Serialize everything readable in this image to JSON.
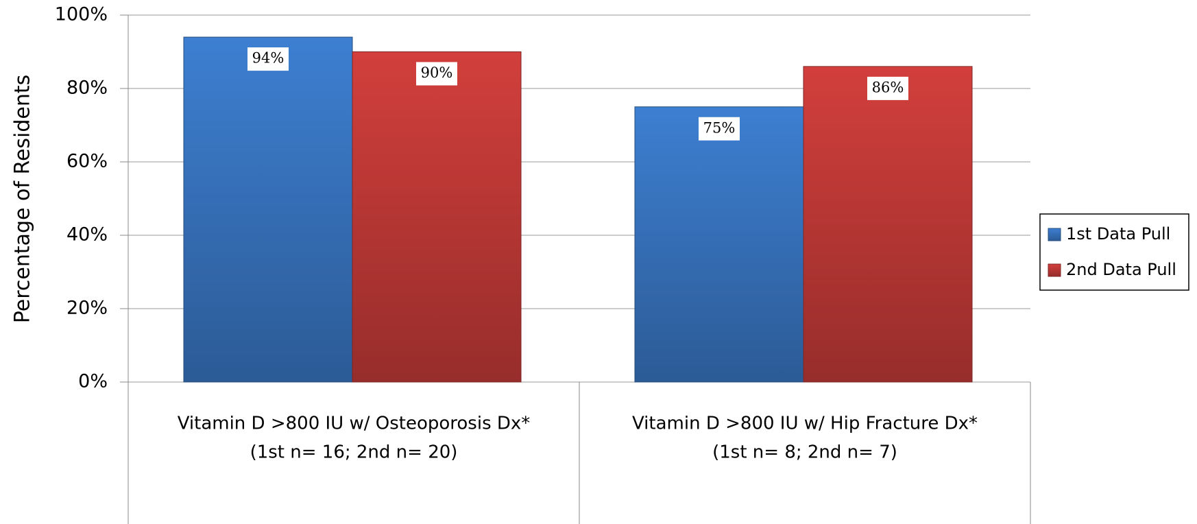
{
  "chart_data": {
    "type": "bar",
    "y_label": "Percentage of Residents",
    "categories": [
      [
        "Vitamin D >800 IU w/ Osteoporosis Dx*",
        "(1st n= 16; 2nd n= 20)"
      ],
      [
        "Vitamin D >800 IU w/ Hip Fracture Dx*",
        "(1st n=  8; 2nd n= 7)"
      ]
    ],
    "series": [
      {
        "name": "1st Data Pull",
        "color": "#3d7fd1",
        "values": [
          94,
          75
        ],
        "value_labels": [
          "94%",
          "75%"
        ]
      },
      {
        "name": "2nd Data Pull",
        "color": "#d23f3c",
        "values": [
          90,
          86
        ],
        "value_labels": [
          "90%",
          "86%"
        ]
      }
    ],
    "ylim": [
      0,
      100
    ],
    "yticks": [
      {
        "value": 0,
        "label": "0%"
      },
      {
        "value": 20,
        "label": "20%"
      },
      {
        "value": 40,
        "label": "40%"
      },
      {
        "value": 60,
        "label": "60%"
      },
      {
        "value": 80,
        "label": "80%"
      },
      {
        "value": 100,
        "label": "100%"
      }
    ],
    "grid": true,
    "legend": "right"
  }
}
